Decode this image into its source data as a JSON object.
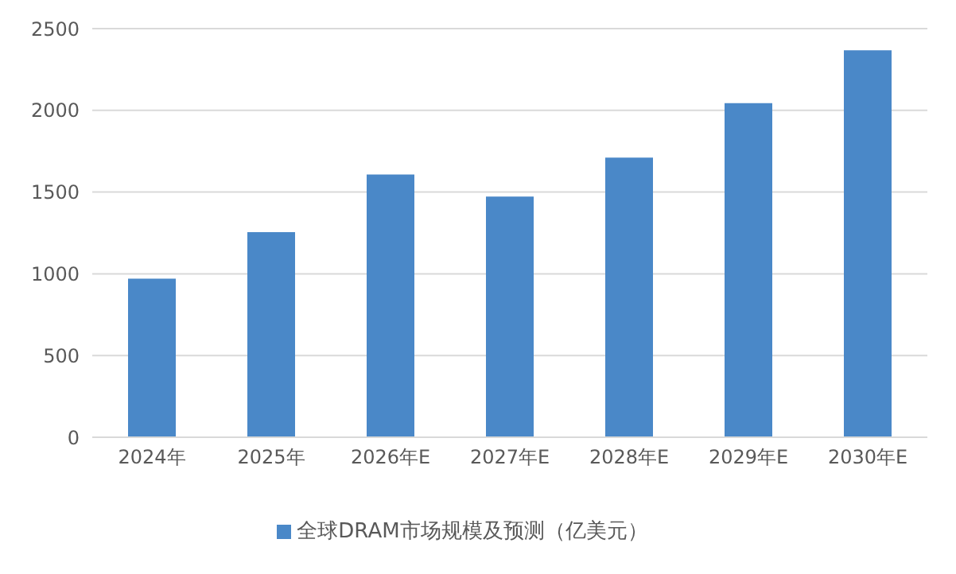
{
  "chart_data": {
    "type": "bar",
    "categories": [
      "2024年",
      "2025年",
      "2026年E",
      "2027年E",
      "2028年E",
      "2029年E",
      "2030年E"
    ],
    "series": [
      {
        "name": "全球DRAM市场规模及预测（亿美元）",
        "color": "#4a88c8",
        "values": [
          970,
          1255,
          1607,
          1473,
          1711,
          2044,
          2367
        ]
      }
    ],
    "ylim": [
      0,
      2500
    ],
    "yticks": [
      0,
      500,
      1000,
      1500,
      2000,
      2500
    ],
    "grid": "y",
    "legend": "bottom"
  }
}
